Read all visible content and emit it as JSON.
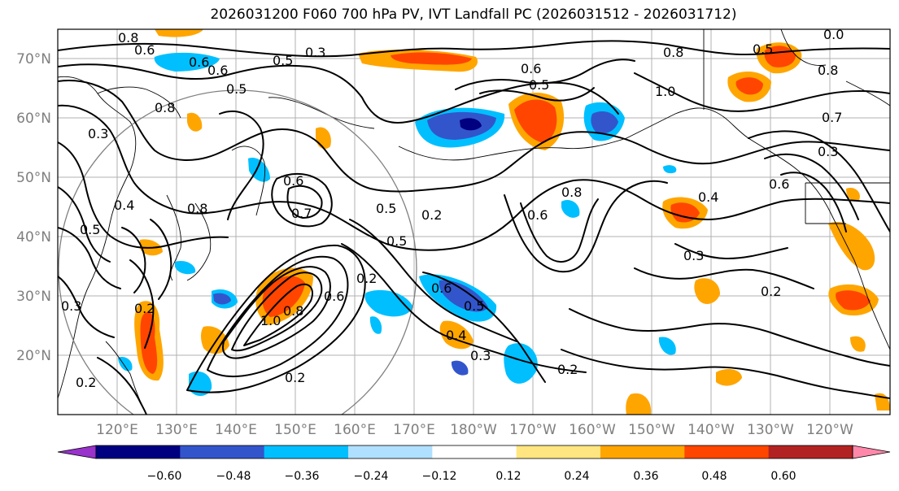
{
  "title": "2026031200 F060 700 hPa PV, IVT Landfall PC (2026031512 - 2026031712)",
  "map": {
    "lat_labels": [
      "70°N",
      "60°N",
      "50°N",
      "40°N",
      "30°N",
      "20°N"
    ],
    "lon_labels": [
      "120°E",
      "130°E",
      "140°E",
      "150°E",
      "160°E",
      "170°E",
      "180°W",
      "170°W",
      "160°W",
      "150°W",
      "140°W",
      "130°W",
      "120°W"
    ],
    "contour_levels_shown": [
      "0.2",
      "0.3",
      "0.4",
      "0.5",
      "0.6",
      "0.7",
      "0.8",
      "1.0"
    ]
  },
  "colorbar": {
    "ticks": [
      "−0.60",
      "−0.48",
      "−0.36",
      "−0.24",
      "−0.12",
      "0.12",
      "0.24",
      "0.36",
      "0.48",
      "0.60"
    ],
    "colors": [
      "#9933cc",
      "#000080",
      "#3355cc",
      "#00bfff",
      "#b0e0ff",
      "#ffffff",
      "#ffe680",
      "#ffa500",
      "#ff4500",
      "#b22222",
      "#ff88aa"
    ]
  },
  "colors": {
    "neg_strong": "#3355cc",
    "neg_mid": "#00bfff",
    "pos_mid": "#ffa500",
    "pos_strong": "#ff4500",
    "contour": "#000000",
    "grid": "#b0b0b0"
  }
}
